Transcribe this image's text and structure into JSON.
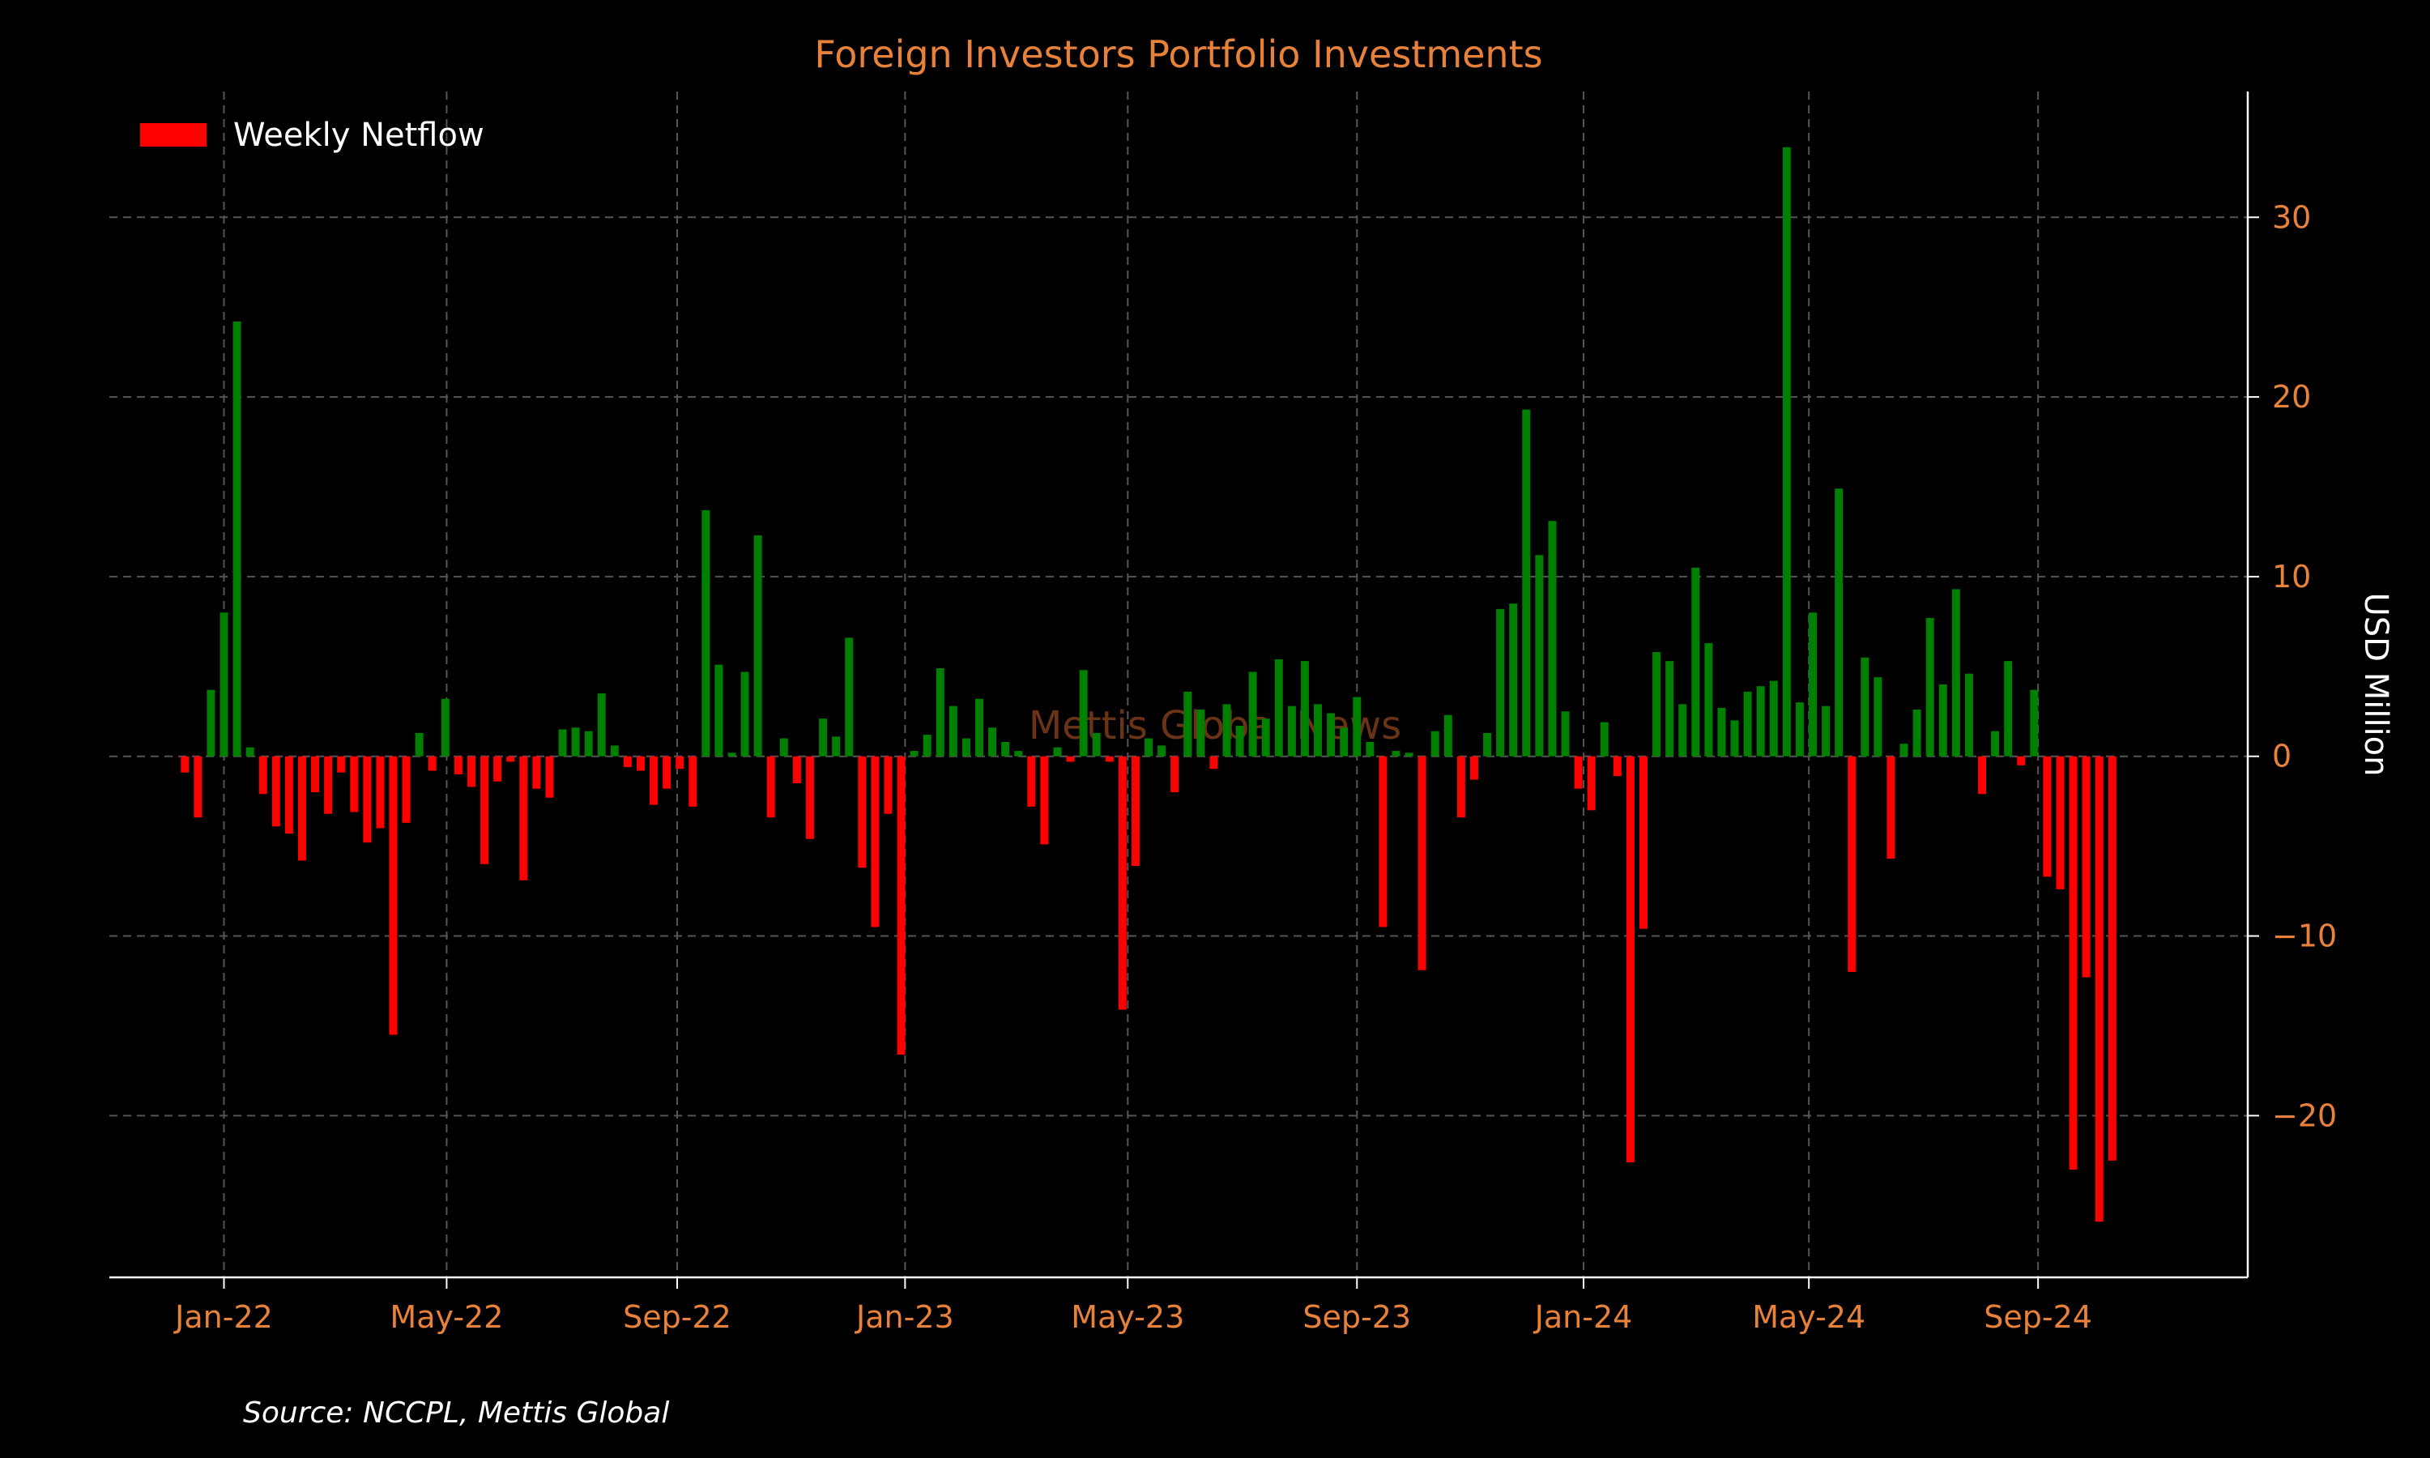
{
  "chart_data": {
    "type": "bar",
    "title": "Foreign Investors Portfolio Investments",
    "ylabel": "USD Million",
    "xlabel": "",
    "ylim": [
      -29,
      37
    ],
    "yticks": [
      -20,
      -10,
      0,
      10,
      20,
      30
    ],
    "ytick_labels": [
      "−20",
      "−10",
      "0",
      "10",
      "20",
      "30"
    ],
    "x_ticks": [
      {
        "label": "Jan-22",
        "pos": 3.0
      },
      {
        "label": "May-22",
        "pos": 20.1
      },
      {
        "label": "Sep-22",
        "pos": 37.8
      },
      {
        "label": "Jan-23",
        "pos": 55.3
      },
      {
        "label": "May-23",
        "pos": 72.4
      },
      {
        "label": "Sep-23",
        "pos": 90.0
      },
      {
        "label": "Jan-24",
        "pos": 107.4
      },
      {
        "label": "May-24",
        "pos": 124.7
      },
      {
        "label": "Sep-24",
        "pos": 142.3
      }
    ],
    "x_range": [
      -5.8,
      158.4
    ],
    "grid": true,
    "legend_position": "top-left",
    "series": [
      {
        "name": "Weekly Netflow",
        "x_start_label": "Dec-21",
        "values": [
          -0.9,
          -3.4,
          3.7,
          8.0,
          24.2,
          0.5,
          -2.1,
          -3.9,
          -4.3,
          -5.8,
          -2.0,
          -3.2,
          -0.9,
          -3.1,
          -4.8,
          -4.0,
          -15.5,
          -3.7,
          1.3,
          -0.8,
          3.2,
          -1.0,
          -1.7,
          -6.0,
          -1.4,
          -0.3,
          -6.9,
          -1.8,
          -2.3,
          1.5,
          1.6,
          1.4,
          3.5,
          0.6,
          -0.6,
          -0.8,
          -2.7,
          -1.8,
          -0.7,
          -2.8,
          13.7,
          5.1,
          0.2,
          4.7,
          12.3,
          -3.4,
          1.0,
          -1.5,
          -4.6,
          2.1,
          1.1,
          6.6,
          -6.2,
          -9.5,
          -3.2,
          -16.6,
          0.3,
          1.2,
          4.9,
          2.8,
          1.0,
          3.2,
          1.6,
          0.8,
          0.3,
          -2.8,
          -4.9,
          0.5,
          -0.3,
          4.8,
          1.3,
          -0.3,
          -14.1,
          -6.1,
          1.0,
          0.6,
          -2.0,
          3.6,
          2.6,
          -0.7,
          2.9,
          1.7,
          4.7,
          2.1,
          5.4,
          2.8,
          5.3,
          2.9,
          2.4,
          1.6,
          3.3,
          0.8,
          -9.5,
          0.3,
          0.2,
          -11.9,
          1.4,
          2.3,
          -3.4,
          -1.3,
          1.3,
          8.2,
          8.5,
          19.3,
          11.2,
          13.1,
          2.5,
          -1.8,
          -3.0,
          1.9,
          -1.1,
          -22.6,
          -9.6,
          5.8,
          5.3,
          2.9,
          10.5,
          6.3,
          2.7,
          2.0,
          3.6,
          3.9,
          4.2,
          33.9,
          3.0,
          8.0,
          2.8,
          14.9,
          -12.0,
          5.5,
          4.4,
          -5.7,
          0.7,
          2.6,
          7.7,
          4.0,
          9.3,
          4.6,
          -2.1,
          1.4,
          5.3,
          -0.5,
          3.7,
          -6.7,
          -7.4,
          -23.0,
          -12.3,
          -25.9,
          -22.5
        ]
      }
    ],
    "colors": {
      "positive": "#008000",
      "negative": "#ff0000",
      "legend_swatch": "#ff0000",
      "title": "#e8823a",
      "ticks": "#e8823a",
      "axis_label": "#ffffff",
      "background": "#000000",
      "grid": "#555555",
      "axis_line": "#ffffff",
      "watermark": "#6b3316"
    }
  },
  "legend": {
    "label": "Weekly Netflow"
  },
  "watermark": "Mettis Global News",
  "source": "Source: NCCPL, Mettis Global"
}
